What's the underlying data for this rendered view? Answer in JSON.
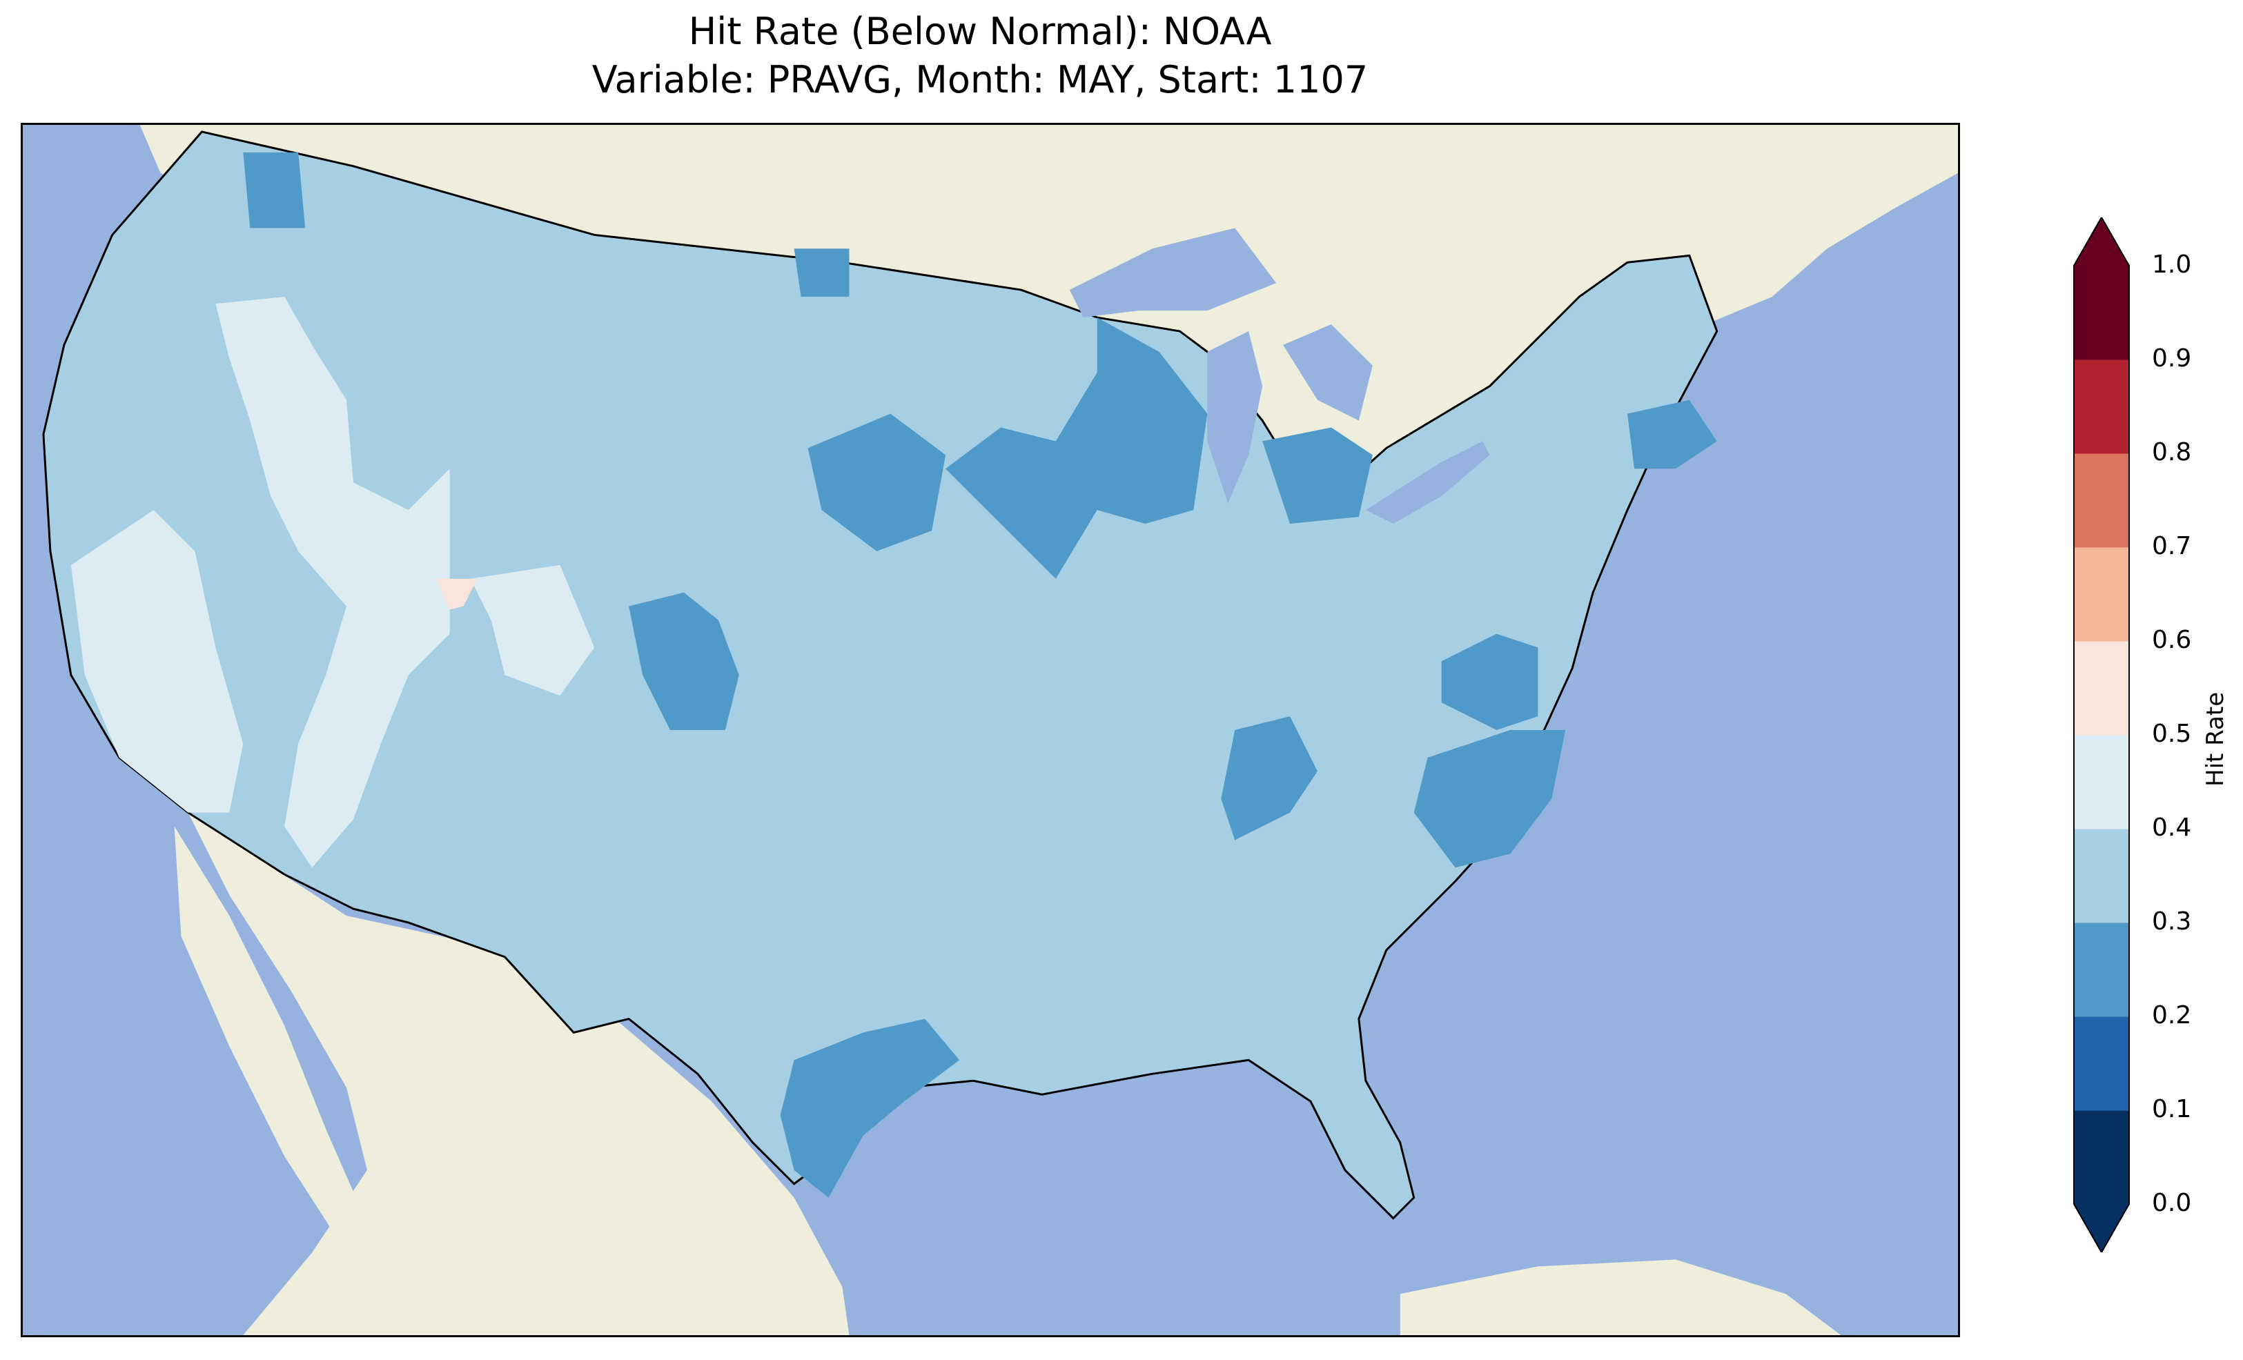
{
  "title": {
    "line1": "Hit Rate (Below Normal): NOAA",
    "line2": "Variable: PRAVG, Month: MAY, Start: 1107"
  },
  "colors": {
    "ocean": "#96B3E0",
    "land": "#EFEEDC",
    "bin_0_1": "#053061",
    "bin_1_2": "#2166AC",
    "bin_2_3": "#4F9AC8",
    "bin_3_4": "#A7CFE4",
    "bin_4_5": "#DDEBF3",
    "bin_5_6": "#F8E4DA",
    "bin_6_7": "#F4B798",
    "bin_7_8": "#DB755F",
    "bin_8_9": "#B3232F",
    "bin_9_10": "#67001F"
  },
  "colorbar": {
    "label": "Hit Rate",
    "ticks": [
      "0.0",
      "0.1",
      "0.2",
      "0.3",
      "0.4",
      "0.5",
      "0.6",
      "0.7",
      "0.8",
      "0.9",
      "1.0"
    ],
    "min": 0.0,
    "max": 1.0,
    "extend": "both"
  }
}
